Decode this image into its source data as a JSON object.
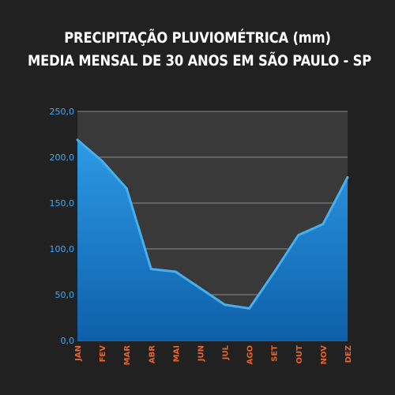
{
  "header": {
    "title_line1": "PRECIPITAÇÃO PLUVIOMÉTRICA (mm)",
    "title_line2": "MEDIA MENSAL DE 30 ANOS EM SÃO PAULO - SP"
  },
  "colors": {
    "background": "#222122",
    "plot_area": "#3a393a",
    "area_fill": "#1f86d6",
    "area_highlight": "#46b0ee",
    "y_tick_color": "#3fa9f5",
    "x_tick_color": "#e8622a",
    "grid": "#8a8a8a"
  },
  "chart_data": {
    "type": "area",
    "title": "PRECIPITAÇÃO PLUVIOMÉTRICA (mm) MEDIA MENSAL DE 30 ANOS EM SÃO PAULO - SP",
    "categories": [
      "JAN",
      "FEV",
      "MAR",
      "ABR",
      "MAI",
      "JUN",
      "JUL",
      "AGO",
      "SET",
      "OUT",
      "NOV",
      "DEZ"
    ],
    "values": [
      219,
      196,
      166,
      78,
      75,
      57,
      39,
      35,
      74,
      115,
      127,
      178
    ],
    "ylim": [
      0,
      250
    ],
    "y_ticks": [
      "0,0",
      "50,0",
      "100,0",
      "150,0",
      "200,0",
      "250,0"
    ],
    "y_tick_values": [
      0,
      50,
      100,
      150,
      200,
      250
    ],
    "grid": true,
    "legend": "none"
  }
}
